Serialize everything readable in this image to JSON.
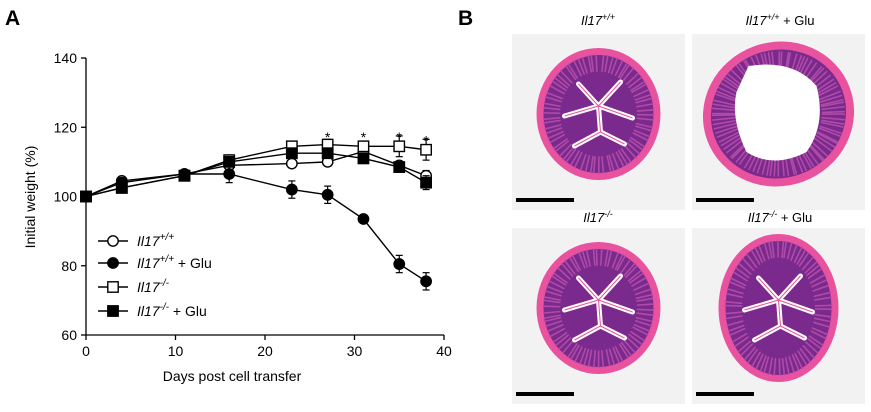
{
  "panels": {
    "a_label": "A",
    "b_label": "B"
  },
  "chart_data": {
    "type": "line",
    "xlabel": "Days post cell transfer",
    "ylabel": "Initial weight (%)",
    "xlim": [
      0,
      40
    ],
    "ylim": [
      60,
      140
    ],
    "xticks": [
      "0",
      "10",
      "20",
      "30",
      "40"
    ],
    "yticks": [
      "60",
      "80",
      "100",
      "120",
      "140"
    ],
    "grid": false,
    "legend_position": "bottom-left",
    "x": [
      0,
      4,
      11,
      16,
      23,
      27,
      31,
      35,
      38
    ],
    "series": [
      {
        "name_gene": "Il17",
        "name_sup": "+/+",
        "name_suffix": "",
        "marker": "open-circle",
        "values": [
          100,
          104.5,
          106.5,
          109,
          109.5,
          110,
          113,
          109,
          106
        ],
        "errors": [
          1,
          1,
          1,
          1,
          1.2,
          1.2,
          1.2,
          1.2,
          1.5
        ]
      },
      {
        "name_gene": "Il17",
        "name_sup": "+/+",
        "name_suffix": " + Glu",
        "marker": "filled-circle",
        "values": [
          100,
          104,
          106.5,
          106.5,
          102,
          100.5,
          93.5,
          80.5,
          75.5
        ],
        "errors": [
          1,
          1,
          1,
          2.5,
          2.5,
          2.5,
          1,
          2.5,
          2.5
        ]
      },
      {
        "name_gene": "Il17",
        "name_sup": "-/-",
        "name_suffix": "",
        "marker": "open-square",
        "values": [
          100,
          102.5,
          106,
          110.5,
          114.5,
          115,
          114.5,
          114.5,
          113.5
        ],
        "errors": [
          1,
          1,
          1,
          1.5,
          1.5,
          1.5,
          1.5,
          3,
          3
        ]
      },
      {
        "name_gene": "Il17",
        "name_sup": "-/-",
        "name_suffix": " + Glu",
        "marker": "filled-square",
        "values": [
          100,
          102.5,
          106,
          110,
          112.5,
          112.5,
          111,
          108.5,
          104
        ],
        "errors": [
          1,
          1,
          1,
          1,
          1,
          1,
          1,
          1.5,
          2
        ]
      }
    ],
    "annotations": [
      {
        "x": 27,
        "y": 117.5,
        "text": "*"
      },
      {
        "x": 31,
        "y": 117.5,
        "text": "*"
      },
      {
        "x": 35,
        "y": 117.5,
        "text": "*"
      },
      {
        "x": 38,
        "y": 116.5,
        "text": "*"
      }
    ]
  },
  "histology": {
    "titles": [
      {
        "gene": "Il17",
        "sup": "+/+",
        "suffix": ""
      },
      {
        "gene": "Il17",
        "sup": "+/+",
        "suffix": " + Glu"
      },
      {
        "gene": "Il17",
        "sup": "-/-",
        "suffix": ""
      },
      {
        "gene": "Il17",
        "sup": "-/-",
        "suffix": " + Glu"
      }
    ],
    "colors": {
      "background": "#f2f2f2",
      "tissue_outer": "#e8529e",
      "tissue_mucosa": "#7a2a8c",
      "crypt": "#b04aa8",
      "lumen": "#ffffff",
      "scale_bar": "#000000"
    }
  }
}
